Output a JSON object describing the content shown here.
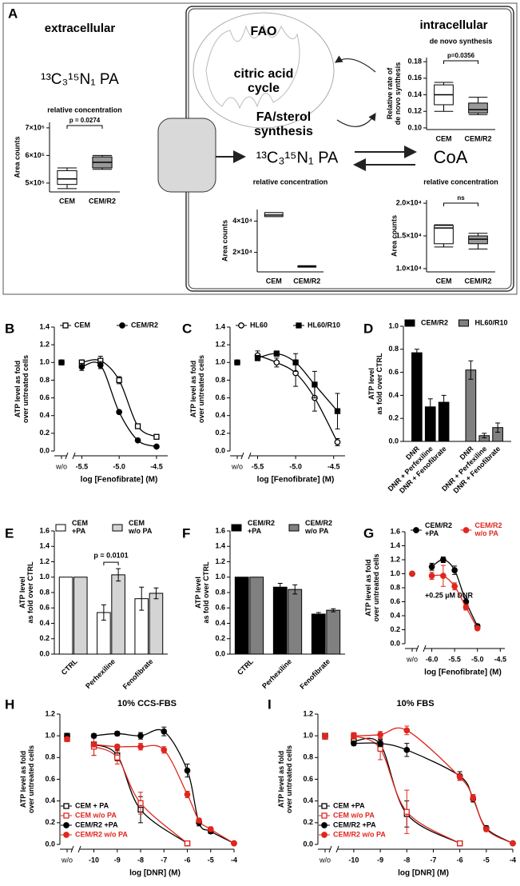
{
  "diagram": {
    "label": "A",
    "extracellular": "extracellular",
    "tracer": "¹³C₃¹⁵N₁ PA",
    "intracellular": "intracellular",
    "fao": "FAO",
    "tca": "citric acid\ncycle",
    "fa_synthesis": "FA/sterol\nsynthesis",
    "coa": "CoA"
  },
  "chart_data": [
    {
      "type": "box",
      "title": "relative concentration",
      "ylabel": "Area counts",
      "categories": [
        "CEM",
        "CEM/R2"
      ],
      "ylim": [
        468000,
        720000
      ],
      "yticks": [
        {
          "value": 500000,
          "label": "5×10⁵"
        },
        {
          "value": 600000,
          "label": "6×10⁵"
        },
        {
          "value": 700000,
          "label": "7×10⁵"
        }
      ],
      "boxes": [
        {
          "color": "#ffffff",
          "min": 480000,
          "q1": 495000,
          "median": 515000,
          "q3": 545000,
          "max": 555000
        },
        {
          "color": "#999999",
          "min": 550000,
          "q1": 555000,
          "median": 575000,
          "q3": 595000,
          "max": 600000
        }
      ],
      "annotation": "p = 0.0274"
    },
    {
      "type": "box",
      "title": "de novo synthesis",
      "ylabel": "Relative rate of\nde novo synthesis",
      "categories": [
        "CEM",
        "CEM/R2"
      ],
      "ylim": [
        0.098,
        0.185
      ],
      "yticks": [
        {
          "value": 0.1,
          "label": "0.10"
        },
        0.12,
        0.14,
        0.16,
        0.18
      ],
      "boxes": [
        {
          "color": "#ffffff",
          "min": 0.12,
          "q1": 0.128,
          "median": 0.14,
          "q3": 0.152,
          "max": 0.155
        },
        {
          "color": "#999999",
          "min": 0.116,
          "q1": 0.118,
          "median": 0.122,
          "q3": 0.13,
          "max": 0.137
        }
      ],
      "annotation": "p=0.0356"
    },
    {
      "type": "box",
      "title": "relative concentration",
      "ylabel": "Area counts",
      "categories": [
        "CEM",
        "CEM/R2"
      ],
      "ylim": [
        7500,
        47500
      ],
      "yticks": [
        {
          "value": 20000,
          "label": "2×10⁴"
        },
        {
          "value": 40000,
          "label": "4×10⁴"
        }
      ],
      "boxes": [
        {
          "color": "#ffffff",
          "min": 43000,
          "q1": 43000,
          "median": 44000,
          "q3": 45500,
          "max": 45500
        },
        {
          "color": "#999999",
          "min": 10500,
          "q1": 10800,
          "median": 11000,
          "q3": 11200,
          "max": 11500
        }
      ]
    },
    {
      "type": "box",
      "title": "relative concentration",
      "ylabel": "Area counts",
      "categories": [
        "CEM",
        "CEM/R2"
      ],
      "ylim": [
        9500,
        20500
      ],
      "yticks": [
        {
          "value": 10000,
          "label": "1.0×10⁴"
        },
        {
          "value": 15000,
          "label": "1.5×10⁴"
        },
        {
          "value": 20000,
          "label": "2.0×10⁴"
        }
      ],
      "boxes": [
        {
          "color": "#ffffff",
          "min": 13300,
          "q1": 13800,
          "median": 16200,
          "q3": 16600,
          "max": 16700
        },
        {
          "color": "#999999",
          "min": 13000,
          "q1": 13800,
          "median": 14500,
          "q3": 15000,
          "max": 15400
        }
      ],
      "annotation": "ns"
    },
    {
      "type": "line",
      "label": "B",
      "ylabel": "ATP level as fold\nover untreated cells",
      "xlabel": "log [Fenofibrate] (M)",
      "control_label": "w/o",
      "legend": "top",
      "xlim": [
        -5.6,
        -4.35
      ],
      "xticks": [
        -5.5,
        {
          "value": -5,
          "label": "-5.0"
        },
        -4.5
      ],
      "ylim": [
        0,
        1.4
      ],
      "yticks": [
        {
          "value": 0,
          "label": "0.0"
        },
        0.2,
        0.4,
        0.6,
        0.8,
        {
          "value": 1,
          "label": "1.0"
        },
        1.2,
        1.4
      ],
      "series": [
        {
          "name": "CEM",
          "color": "#000000",
          "marker": "square-open",
          "control_value": 1.0,
          "x": [
            -5.5,
            -5.25,
            -5,
            -4.75,
            -4.5
          ],
          "values": [
            1.0,
            1.02,
            0.8,
            0.28,
            0.16
          ],
          "errors": [
            0.03,
            0.05,
            0.04,
            0.02,
            0.02
          ]
        },
        {
          "name": "CEM/R2",
          "color": "#000000",
          "marker": "circle-filled",
          "control_value": 1.0,
          "x": [
            -5.5,
            -5.25,
            -5,
            -4.75,
            -4.5
          ],
          "values": [
            0.95,
            0.97,
            0.44,
            0.12,
            0.05
          ],
          "errors": [
            0.04,
            0.04,
            0.02,
            0.01,
            0.01
          ]
        }
      ]
    },
    {
      "type": "line",
      "label": "C",
      "ylabel": "ATP level as fold\nover untreated cells",
      "xlabel": "log [Fenofibrate] (M)",
      "control_label": "w/o",
      "legend": "top",
      "xlim": [
        -5.6,
        -4.35
      ],
      "xticks": [
        -5.5,
        {
          "value": -5,
          "label": "-5.0"
        },
        -4.5
      ],
      "ylim": [
        0,
        1.4
      ],
      "yticks": [
        {
          "value": 0,
          "label": "0.0"
        },
        0.2,
        0.4,
        0.6,
        0.8,
        {
          "value": 1,
          "label": "1.0"
        },
        1.2,
        1.4
      ],
      "series": [
        {
          "name": "HL60",
          "color": "#000000",
          "marker": "circle-open",
          "control_value": 1.0,
          "x": [
            -5.5,
            -5.25,
            -5,
            -4.75,
            -4.45
          ],
          "values": [
            1.08,
            1.0,
            0.88,
            0.6,
            0.1
          ],
          "errors": [
            0.05,
            0.05,
            0.15,
            0.15,
            0.04
          ]
        },
        {
          "name": "HL60/R10",
          "color": "#000000",
          "marker": "square-filled",
          "control_value": 1.0,
          "x": [
            -5.5,
            -5.25,
            -5,
            -4.75,
            -4.45
          ],
          "values": [
            1.05,
            1.1,
            1.0,
            0.75,
            0.45
          ],
          "errors": [
            0.03,
            0.03,
            0.1,
            0.15,
            0.2
          ]
        }
      ]
    },
    {
      "type": "bar",
      "label": "D",
      "ylabel": "ATP level\nas fold over CTRL",
      "grouping": "series",
      "legend": "top",
      "categories": [
        "DNR",
        "DNR + Perfexiline",
        "DNR + Fenofibrate"
      ],
      "ylim": [
        0,
        1.0
      ],
      "yticks": [
        {
          "value": 0,
          "label": "0.0"
        },
        0.2,
        0.4,
        0.6,
        0.8,
        {
          "value": 1,
          "label": "1.0"
        }
      ],
      "series": [
        {
          "name": "CEM/R2",
          "color": "#000000",
          "values": [
            0.77,
            0.3,
            0.34
          ],
          "errors": [
            0.03,
            0.07,
            0.06
          ]
        },
        {
          "name": "HL60/R10",
          "color": "#808080",
          "values": [
            0.62,
            0.05,
            0.12
          ],
          "errors": [
            0.08,
            0.02,
            0.04
          ]
        }
      ]
    },
    {
      "type": "bar",
      "label": "E",
      "ylabel": "ATP level\nas fold over CTRL",
      "grouping": "category",
      "legend": "top",
      "annotation": "p = 0.0101",
      "categories": [
        "CTRL",
        "Perhexiline",
        "Fenofibrate"
      ],
      "ylim": [
        0,
        1.6
      ],
      "yticks": [
        {
          "value": 0,
          "label": "0.0"
        },
        0.2,
        0.4,
        0.6,
        0.8,
        {
          "value": 1,
          "label": "1.0"
        },
        1.2,
        1.4,
        1.6
      ],
      "series": [
        {
          "name": "CEM\n+PA",
          "color": "#ffffff",
          "values": [
            1.0,
            0.54,
            0.72
          ],
          "errors": [
            0,
            0.1,
            0.15
          ]
        },
        {
          "name": "CEM\nw/o PA",
          "color": "#d4d4d4",
          "values": [
            1.0,
            1.03,
            0.79
          ],
          "errors": [
            0,
            0.08,
            0.07
          ]
        }
      ]
    },
    {
      "type": "bar",
      "label": "F",
      "ylabel": "ATP level\nas fold over CTRL",
      "grouping": "category",
      "legend": "top",
      "categories": [
        "CTRL",
        "Perhexiline",
        "Fenofibrate"
      ],
      "ylim": [
        0,
        1.6
      ],
      "yticks": [
        {
          "value": 0,
          "label": "0.0"
        },
        0.2,
        0.4,
        0.6,
        0.8,
        {
          "value": 1,
          "label": "1.0"
        },
        1.2,
        1.4,
        1.6
      ],
      "series": [
        {
          "name": "CEM/R2\n+PA",
          "color": "#000000",
          "values": [
            1.0,
            0.87,
            0.52
          ],
          "errors": [
            0,
            0.05,
            0.02
          ]
        },
        {
          "name": "CEM/R2\nw/o PA",
          "color": "#808080",
          "values": [
            1.0,
            0.84,
            0.57
          ],
          "errors": [
            0,
            0.06,
            0.02
          ]
        }
      ]
    },
    {
      "type": "line",
      "label": "G",
      "ylabel": "ATP level as fold\nover untreated cells",
      "xlabel": "log [Fenofibrate] (M)",
      "control_label": "w/o",
      "legend": "top",
      "annotation": "+0.25 µM DNR",
      "xlim": [
        -6.15,
        -4.4
      ],
      "xticks": [
        {
          "value": -6,
          "label": "-6.0"
        },
        -5.5,
        {
          "value": -5,
          "label": "-5.0"
        },
        -4.5
      ],
      "ylim": [
        0,
        1.6
      ],
      "yticks": [
        {
          "value": 0,
          "label": "0.0"
        },
        0.2,
        0.4,
        0.6,
        0.8,
        {
          "value": 1,
          "label": "1.0"
        },
        1.2,
        1.4,
        1.6
      ],
      "series": [
        {
          "name": "CEM/R2\n+PA",
          "color": "#000000",
          "marker": "circle-filled",
          "control_value": 1.0,
          "x": [
            -6,
            -5.75,
            -5.5,
            -5.25,
            -5
          ],
          "values": [
            1.1,
            1.2,
            1.05,
            0.6,
            0.25
          ],
          "errors": [
            0.05,
            0.04,
            0.06,
            0.05,
            0.03
          ]
        },
        {
          "name": "CEM/R2\nw/o PA",
          "color": "#e0261e",
          "marker": "circle-filled",
          "control_value": 1.0,
          "x": [
            -6,
            -5.75,
            -5.5,
            -5.25,
            -5
          ],
          "values": [
            0.97,
            0.97,
            0.82,
            0.52,
            0.22
          ],
          "errors": [
            0.05,
            0.15,
            0.05,
            0.04,
            0.02
          ]
        }
      ]
    },
    {
      "type": "line",
      "label": "H",
      "title": "10% CCS-FBS",
      "ylabel": "ATP level as fold\nover untreated cells",
      "xlabel": "log [DNR] (M)",
      "control_label": "w/o",
      "legend": "lower left",
      "xlim": [
        -10.6,
        -4
      ],
      "xticks": [
        -10,
        -9,
        -8,
        -7,
        -6,
        -5,
        -4
      ],
      "ylim": [
        0,
        1.2
      ],
      "yticks": [
        {
          "value": 0,
          "label": "0.0"
        },
        0.2,
        0.4,
        0.6,
        0.8,
        {
          "value": 1,
          "label": "1.0"
        },
        1.2
      ],
      "series": [
        {
          "name": "CEM + PA",
          "color": "#000000",
          "marker": "square-open",
          "control_value": 1.0,
          "x": [
            -10,
            -9,
            -8,
            -6
          ],
          "values": [
            0.92,
            0.82,
            0.32,
            0.01
          ],
          "errors": [
            0.1,
            0.05,
            0.12,
            0
          ]
        },
        {
          "name": "CEM w/o PA",
          "color": "#e0261e",
          "marker": "square-open",
          "control_value": 0.97,
          "x": [
            -10,
            -9,
            -8,
            -6
          ],
          "values": [
            0.9,
            0.8,
            0.38,
            0.01
          ],
          "errors": [
            0.08,
            0.06,
            0.1,
            0
          ]
        },
        {
          "name": "CEM/R2 +PA",
          "color": "#000000",
          "marker": "circle-filled",
          "control_value": 1.0,
          "x": [
            -10,
            -9,
            -8,
            -7,
            -6,
            -5.5,
            -5,
            -4
          ],
          "values": [
            1.0,
            1.02,
            1.0,
            1.04,
            0.68,
            0.2,
            0.12,
            0.01
          ],
          "errors": [
            0.02,
            0.02,
            0.03,
            0.04,
            0.06,
            0.03,
            0.02,
            0
          ]
        },
        {
          "name": "CEM/R2 w/o PA",
          "color": "#e0261e",
          "marker": "circle-filled",
          "control_value": 0.97,
          "x": [
            -10,
            -9,
            -8,
            -7,
            -6,
            -5.5,
            -5,
            -4
          ],
          "values": [
            0.92,
            0.9,
            0.9,
            0.87,
            0.46,
            0.22,
            0.14,
            0.01
          ],
          "errors": [
            0.02,
            0.02,
            0.03,
            0.03,
            0.03,
            0.02,
            0.02,
            0
          ]
        }
      ]
    },
    {
      "type": "line",
      "label": "I",
      "title": "10% FBS",
      "ylabel": "ATP level as fold\nover untreated cells",
      "xlabel": "log [DNR] (M)",
      "control_label": "w/o",
      "legend": "lower left",
      "xlim": [
        -10.6,
        -4
      ],
      "xticks": [
        -10,
        -9,
        -8,
        -7,
        -6,
        -5,
        -4
      ],
      "ylim": [
        0,
        1.2
      ],
      "yticks": [
        {
          "value": 0,
          "label": "0.0"
        },
        0.2,
        0.4,
        0.6,
        0.8,
        {
          "value": 1,
          "label": "1.0"
        },
        1.2
      ],
      "series": [
        {
          "name": "CEM +PA",
          "color": "#000000",
          "marker": "square-open",
          "control_value": 1.0,
          "x": [
            -10,
            -9,
            -8,
            -6
          ],
          "values": [
            0.95,
            0.92,
            0.28,
            0.01
          ],
          "errors": [
            0.03,
            0.05,
            0.12,
            0
          ]
        },
        {
          "name": "CEM w/o PA",
          "color": "#e0261e",
          "marker": "square-open",
          "control_value": 0.99,
          "x": [
            -10,
            -9,
            -8,
            -6
          ],
          "values": [
            1.0,
            0.88,
            0.3,
            0.01
          ],
          "errors": [
            0.03,
            0.1,
            0.2,
            0
          ]
        },
        {
          "name": "CEM/R2 +PA",
          "color": "#000000",
          "marker": "circle-filled",
          "control_value": 1.0,
          "x": [
            -10,
            -9,
            -8,
            -6,
            -5.5,
            -5,
            -4
          ],
          "values": [
            0.93,
            0.93,
            0.87,
            0.63,
            0.42,
            0.15,
            0.01
          ],
          "errors": [
            0.02,
            0.03,
            0.06,
            0.04,
            0.03,
            0.02,
            0
          ]
        },
        {
          "name": "CEM/R2 w/o PA",
          "color": "#e0261e",
          "marker": "circle-filled",
          "control_value": 1.0,
          "x": [
            -10,
            -9,
            -8,
            -6,
            -5.5,
            -5,
            -4
          ],
          "values": [
            1.0,
            1.01,
            1.05,
            0.62,
            0.43,
            0.14,
            0.01
          ],
          "errors": [
            0.02,
            0.03,
            0.04,
            0.03,
            0.03,
            0.02,
            0
          ]
        }
      ]
    }
  ]
}
